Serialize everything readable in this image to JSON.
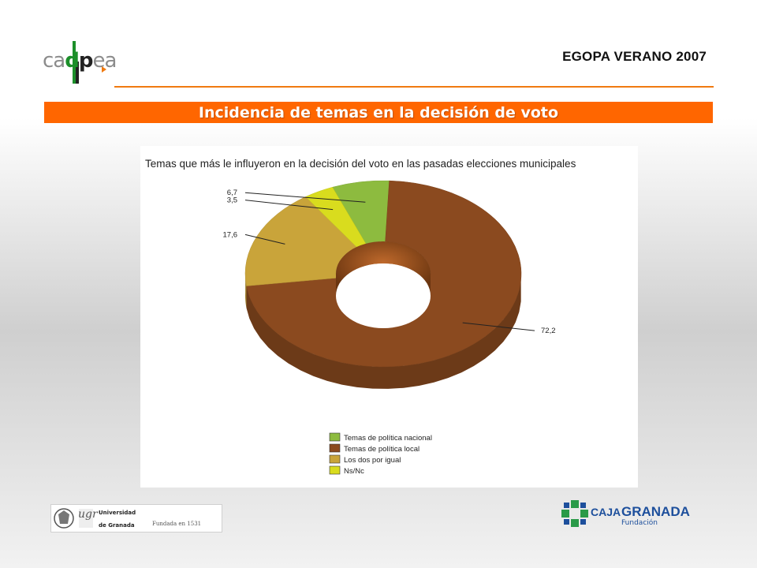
{
  "header": {
    "logo_text_1": "ca",
    "logo_text_2": "d",
    "logo_text_3": "p",
    "logo_text_4": "ea",
    "doc_title": "EGOPA VERANO 2007",
    "banner_title": "Incidencia de temas en la decisión de voto",
    "accent_color": "#ff6600"
  },
  "chart_data": {
    "type": "pie",
    "style": "3D donut",
    "title": "Temas que más le influyeron en la decisión del voto en las pasadas elecciones municipales",
    "legend_position": "bottom-left",
    "slices": [
      {
        "label": "Temas de política nacional",
        "value": 6.7,
        "value_label": "6,7",
        "color": "#8dbb3f"
      },
      {
        "label": "Temas de política local",
        "value": 72.2,
        "value_label": "72,2",
        "color": "#8b4a1f"
      },
      {
        "label": "Los dos por igual",
        "value": 17.6,
        "value_label": "17,6",
        "color": "#c9a43a"
      },
      {
        "label": "Ns/Nc",
        "value": 3.5,
        "value_label": "3,5",
        "color": "#d9dc1e"
      }
    ]
  },
  "footer": {
    "ugr_name_1": "Universidad",
    "ugr_name_2": "de Granada",
    "ugr_abbrev": "ugr",
    "ugr_founded": "Fundada en 1531",
    "caja_brand_1": "CAJA",
    "caja_brand_2": "GRANADA",
    "caja_sub": "Fundación"
  }
}
